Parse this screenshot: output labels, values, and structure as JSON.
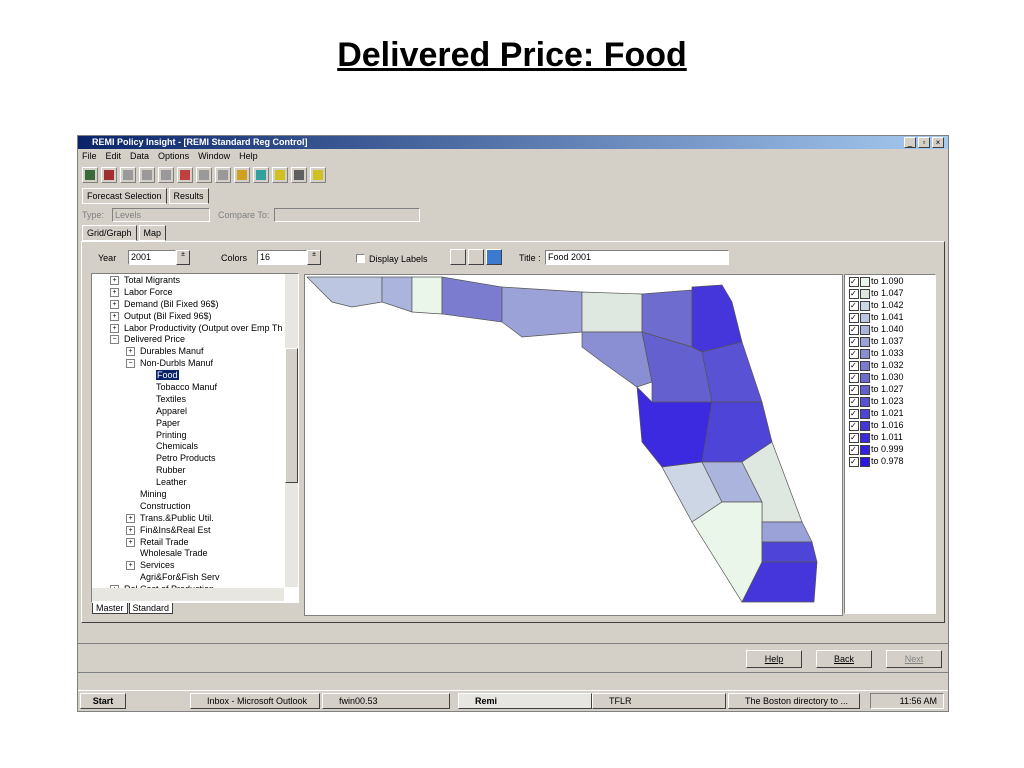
{
  "slide_title": "Delivered Price: Food",
  "window": {
    "title": "REMI Policy Insight - [REMI Standard Reg Control]",
    "menu": [
      "File",
      "Edit",
      "Data",
      "Options",
      "Window",
      "Help"
    ]
  },
  "tabs": [
    "Forecast Selection",
    "Results"
  ],
  "filters": {
    "type_label": "Type:",
    "type_value": "Levels",
    "compare_label": "Compare To:"
  },
  "subtabs": [
    "Grid/Graph",
    "Map"
  ],
  "controls": {
    "year_label": "Year",
    "year": 2001,
    "colors_label": "Colors",
    "colors": 16,
    "display_labels": "Display Labels",
    "title_label": "Title :",
    "title_value": "Food 2001"
  },
  "tree": [
    "Total Migrants",
    "Labor Force",
    "Demand (Bil Fixed 96$)",
    "Output (Bil Fixed 96$)",
    "Labor Productivity (Output over Emp Th",
    "Delivered Price",
    "Durables Manuf",
    "Non-Durbls Manuf",
    "Food",
    "Tobacco Manuf",
    "Textiles",
    "Apparel",
    "Paper",
    "Printing",
    "Chemicals",
    "Petro Products",
    "Rubber",
    "Leather",
    "Mining",
    "Construction",
    "Trans.&Public Util.",
    "Fin&Ins&Real Est",
    "Retail Trade",
    "Wholesale Trade",
    "Services",
    "Agri&For&Fish Serv",
    "Rel Cost of Production"
  ],
  "tree_tabs": [
    "Master",
    "Standard"
  ],
  "legend": {
    "items": [
      "to 1.090",
      "to 1.047",
      "to 1.042",
      "to 1.041",
      "to 1.040",
      "to 1.037",
      "to 1.033",
      "to 1.032",
      "to 1.030",
      "to 1.027",
      "to 1.023",
      "to 1.021",
      "to 1.016",
      "to 1.011",
      "to 0.999",
      "to 0.978"
    ],
    "colors": [
      "#eaf6ea",
      "#dfe8e0",
      "#ccd6e4",
      "#bcc6e0",
      "#aab4dc",
      "#9ba2d8",
      "#8a8fd4",
      "#7b7cd0",
      "#6f6cd0",
      "#6560d0",
      "#5a52d4",
      "#4f44d8",
      "#4536dc",
      "#3c2ae0",
      "#3420e4",
      "#2d16e8"
    ]
  },
  "buttons": [
    "Help",
    "Back",
    "Next"
  ],
  "taskbar": {
    "start": "Start",
    "items": [
      "Inbox - Microsoft Outlook",
      "fwin00.53",
      "Remi",
      "TFLR",
      "The Boston directory to ..."
    ],
    "clock": "11:56 AM"
  }
}
